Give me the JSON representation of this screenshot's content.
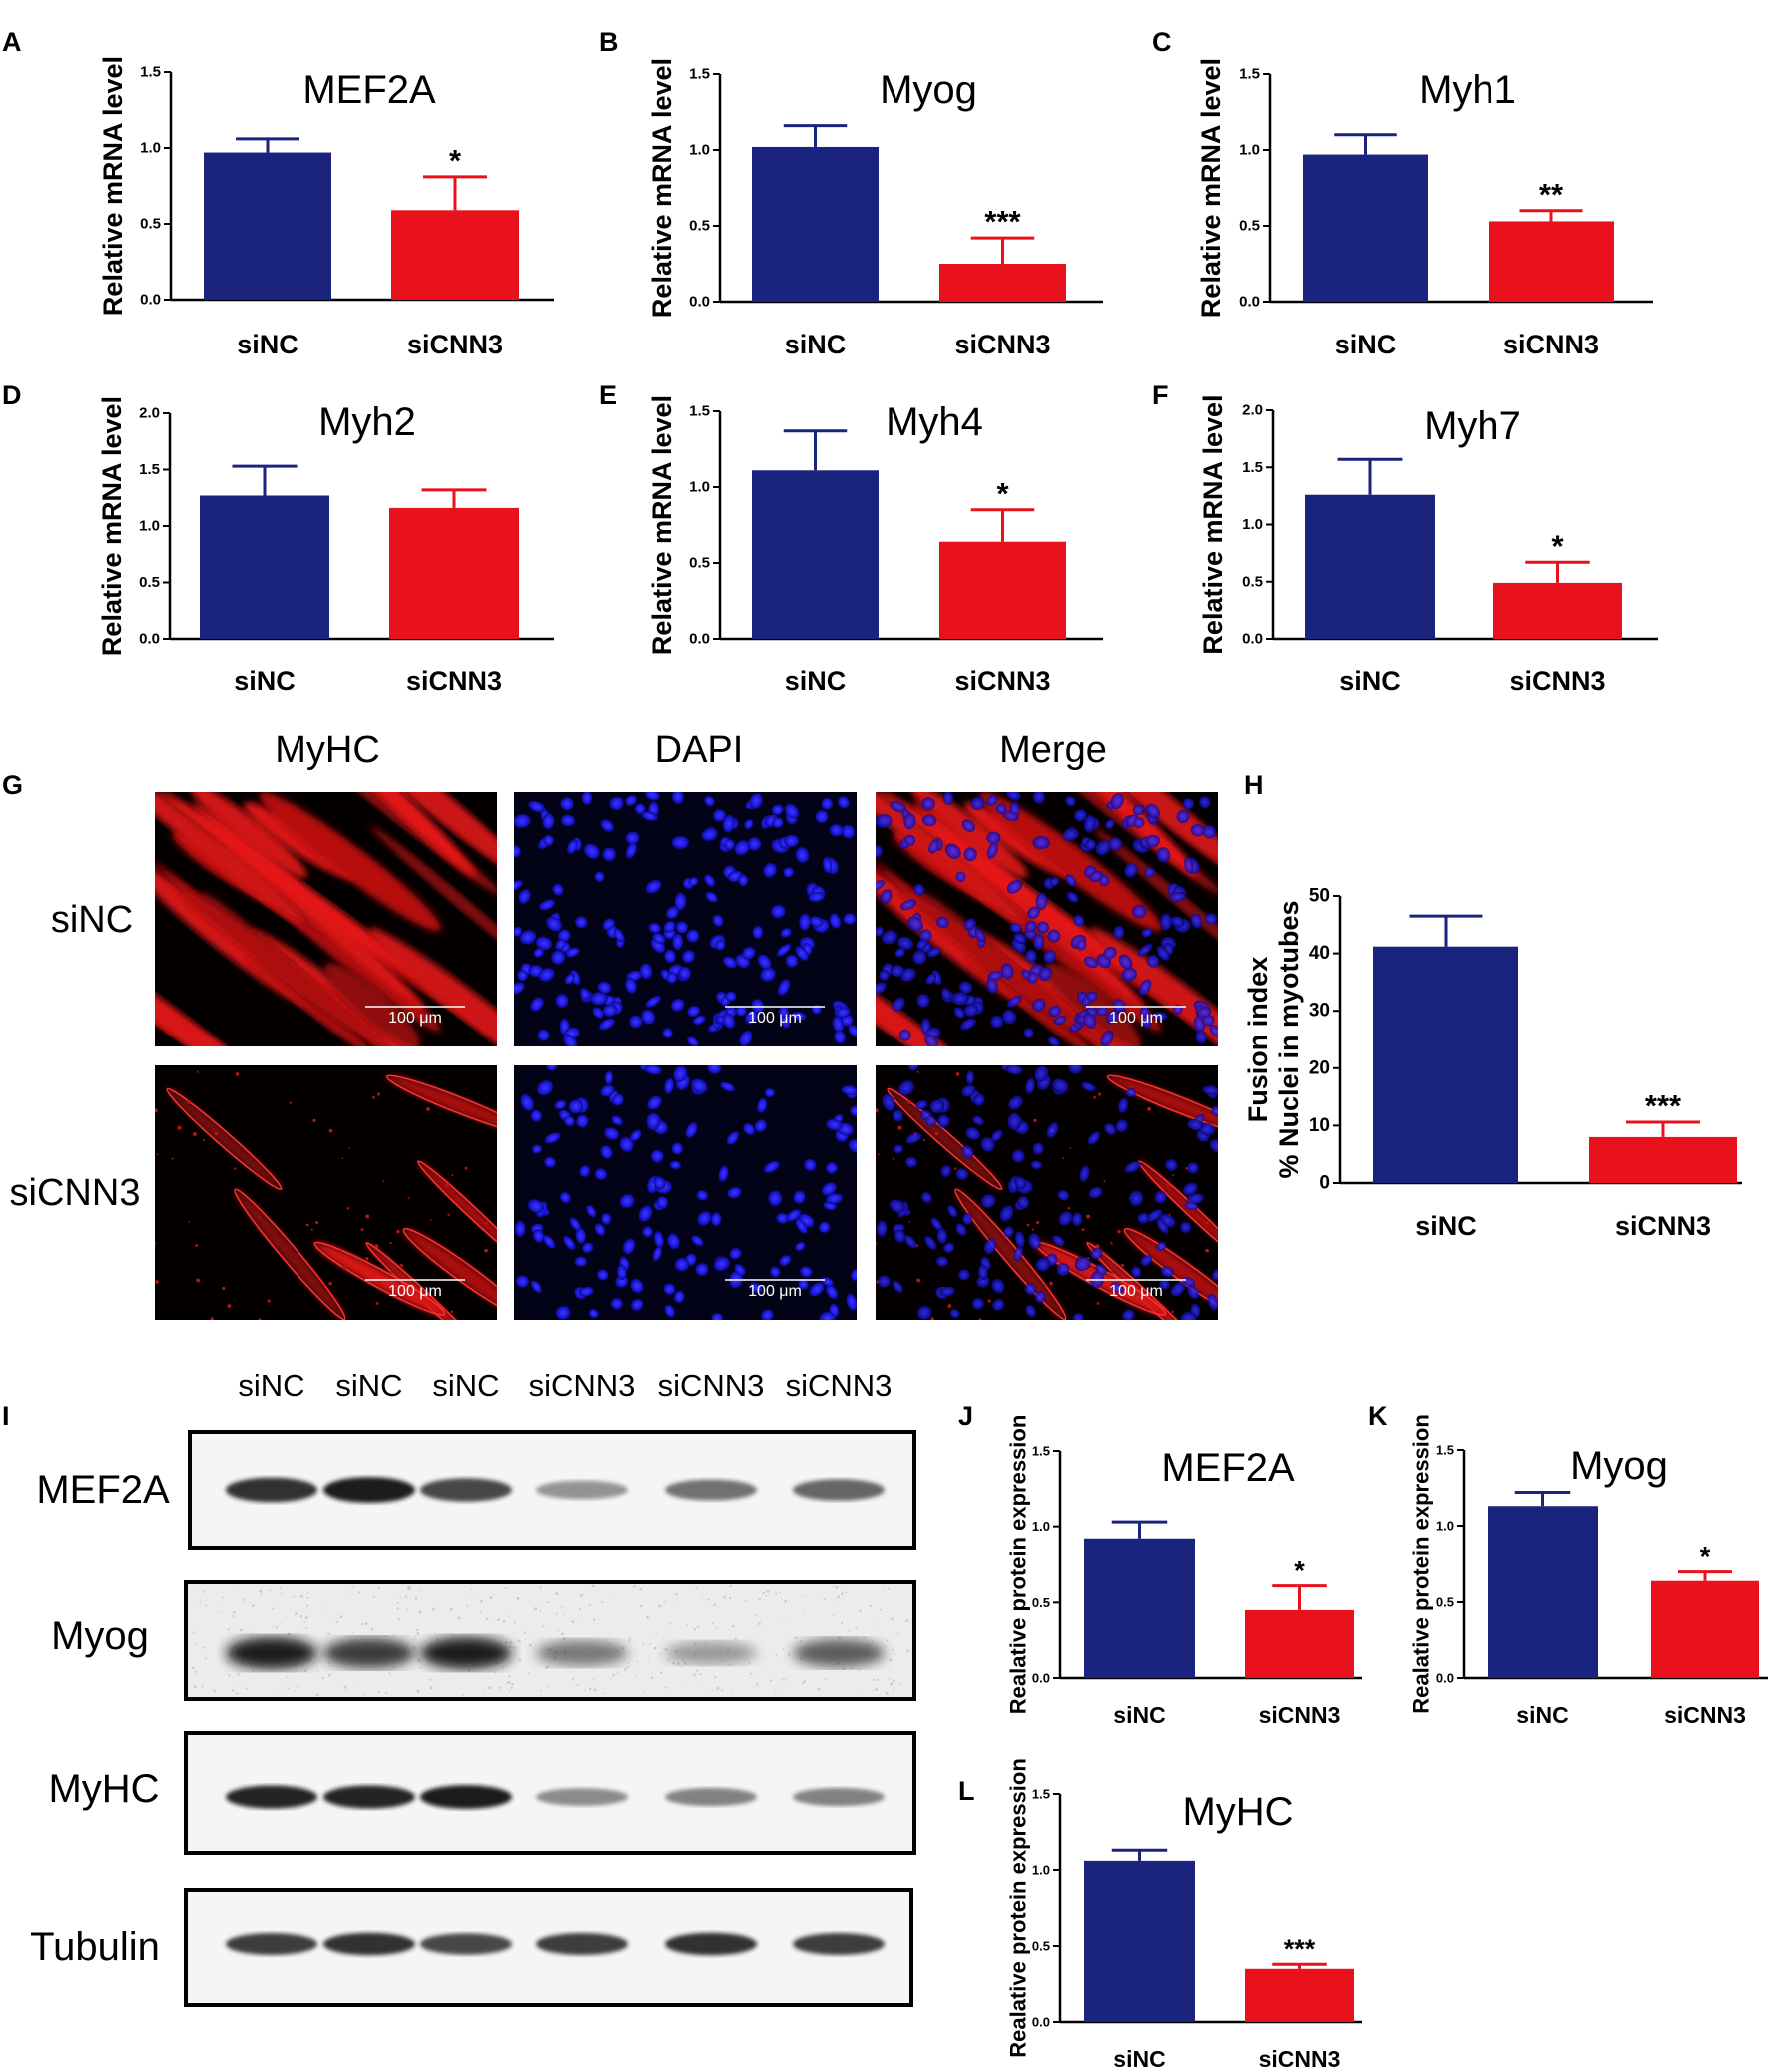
{
  "colors": {
    "siNC": "#1a237e",
    "siCNN3": "#e8111c",
    "axis": "#000000"
  },
  "panel_letters": [
    "A",
    "B",
    "C",
    "D",
    "E",
    "F",
    "G",
    "H",
    "I",
    "J",
    "K",
    "L"
  ],
  "chart_data": [
    {
      "id": "A",
      "type": "bar",
      "title": "MEF2A",
      "ylabel": "Relative mRNA level",
      "categories": [
        "siNC",
        "siCNN3"
      ],
      "values": [
        0.97,
        0.59
      ],
      "errors": [
        0.09,
        0.22
      ],
      "ylim": [
        0,
        1.5
      ],
      "yticks": [
        "0.0",
        "0.5",
        "1.0",
        "1.5"
      ],
      "significance": [
        "",
        "*"
      ]
    },
    {
      "id": "B",
      "type": "bar",
      "title": "Myog",
      "ylabel": "Relative mRNA  level",
      "categories": [
        "siNC",
        "siCNN3"
      ],
      "values": [
        1.02,
        0.25
      ],
      "errors": [
        0.14,
        0.17
      ],
      "ylim": [
        0,
        1.5
      ],
      "yticks": [
        "0.0",
        "0.5",
        "1.0",
        "1.5"
      ],
      "significance": [
        "",
        "***"
      ]
    },
    {
      "id": "C",
      "type": "bar",
      "title": "Myh1",
      "ylabel": "Relative mRNA level",
      "categories": [
        "siNC",
        "siCNN3"
      ],
      "values": [
        0.97,
        0.53
      ],
      "errors": [
        0.13,
        0.07
      ],
      "ylim": [
        0,
        1.5
      ],
      "yticks": [
        "0.0",
        "0.5",
        "1.0",
        "1.5"
      ],
      "significance": [
        "",
        "**"
      ]
    },
    {
      "id": "D",
      "type": "bar",
      "title": "Myh2",
      "ylabel": "Relative mRNA level",
      "categories": [
        "siNC",
        "siCNN3"
      ],
      "values": [
        1.27,
        1.16
      ],
      "errors": [
        0.26,
        0.16
      ],
      "ylim": [
        0,
        2.0
      ],
      "yticks": [
        "0.0",
        "0.5",
        "1.0",
        "1.5",
        "2.0"
      ],
      "significance": [
        "",
        ""
      ]
    },
    {
      "id": "E",
      "type": "bar",
      "title": "Myh4",
      "ylabel": "Relative mRNA  level",
      "categories": [
        "siNC",
        "siCNN3"
      ],
      "values": [
        1.11,
        0.64
      ],
      "errors": [
        0.26,
        0.21
      ],
      "ylim": [
        0,
        1.5
      ],
      "yticks": [
        "0.0",
        "0.5",
        "1.0",
        "1.5"
      ],
      "significance": [
        "",
        "*"
      ]
    },
    {
      "id": "F",
      "type": "bar",
      "title": "Myh7",
      "ylabel": "Relative mRNA  level",
      "categories": [
        "siNC",
        "siCNN3"
      ],
      "values": [
        1.26,
        0.49
      ],
      "errors": [
        0.31,
        0.18
      ],
      "ylim": [
        0,
        2.0
      ],
      "yticks": [
        "0.0",
        "0.5",
        "1.0",
        "1.5",
        "2.0"
      ],
      "significance": [
        "",
        "*"
      ]
    },
    {
      "id": "H",
      "type": "bar",
      "title": "",
      "ylabel": "Fusion index",
      "ylabel2": "% Nuclei in myotubes",
      "categories": [
        "siNC",
        "siCNN3"
      ],
      "values": [
        41.2,
        8.0
      ],
      "errors": [
        5.3,
        2.6
      ],
      "ylim": [
        0,
        50
      ],
      "yticks": [
        "0",
        "10",
        "20",
        "30",
        "40",
        "50"
      ],
      "significance": [
        "",
        "***"
      ]
    },
    {
      "id": "J",
      "type": "bar",
      "title": "MEF2A",
      "ylabel": "Realative protein expression",
      "categories": [
        "siNC",
        "siCNN3"
      ],
      "values": [
        0.92,
        0.45
      ],
      "errors": [
        0.11,
        0.16
      ],
      "ylim": [
        0,
        1.5
      ],
      "yticks": [
        "0.0",
        "0.5",
        "1.0",
        "1.5"
      ],
      "significance": [
        "",
        "*"
      ]
    },
    {
      "id": "K",
      "type": "bar",
      "title": "Myog",
      "ylabel": "Realative protein expression",
      "categories": [
        "siNC",
        "siCNN3"
      ],
      "values": [
        1.13,
        0.64
      ],
      "errors": [
        0.09,
        0.06
      ],
      "ylim": [
        0,
        1.5
      ],
      "yticks": [
        "0.0",
        "0.5",
        "1.0",
        "1.5"
      ],
      "significance": [
        "",
        "*"
      ]
    },
    {
      "id": "L",
      "type": "bar",
      "title": "MyHC",
      "ylabel": "Realative protein expression",
      "categories": [
        "siNC",
        "siCNN3"
      ],
      "values": [
        1.06,
        0.35
      ],
      "errors": [
        0.07,
        0.03
      ],
      "ylim": [
        0,
        1.5
      ],
      "yticks": [
        "0.0",
        "0.5",
        "1.0",
        "1.5"
      ],
      "significance": [
        "",
        "***"
      ]
    }
  ],
  "microscopy": {
    "columns": [
      "MyHC",
      "DAPI",
      "Merge"
    ],
    "rows": [
      "siNC",
      "siCNN3"
    ],
    "scale_bar": "100 μm"
  },
  "western": {
    "lanes": [
      "siNC",
      "siNC",
      "siNC",
      "siCNN3",
      "siCNN3",
      "siCNN3"
    ],
    "bands": [
      {
        "label": "MEF2A",
        "intensity": [
          0.85,
          0.95,
          0.75,
          0.35,
          0.55,
          0.6
        ]
      },
      {
        "label": "Myog",
        "intensity": [
          0.95,
          0.8,
          0.95,
          0.5,
          0.3,
          0.65
        ]
      },
      {
        "label": "MyHC",
        "intensity": [
          0.9,
          0.9,
          0.95,
          0.4,
          0.45,
          0.45
        ]
      },
      {
        "label": "Tubulin",
        "intensity": [
          0.8,
          0.85,
          0.75,
          0.8,
          0.85,
          0.8
        ]
      }
    ]
  }
}
